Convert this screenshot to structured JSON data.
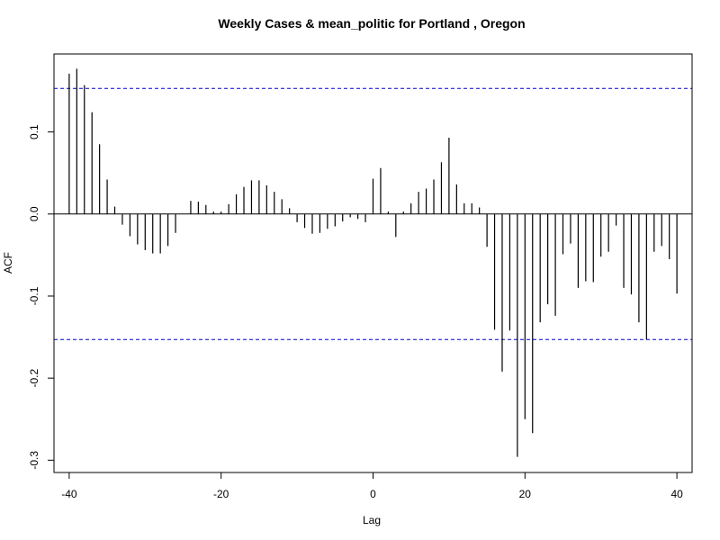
{
  "chart_data": {
    "type": "bar",
    "title": "Weekly Cases & mean_politic for Portland , Oregon",
    "xlabel": "Lag",
    "ylabel": "ACF",
    "xlim": [
      -42,
      42
    ],
    "ylim": [
      -0.315,
      0.195
    ],
    "x_ticks": [
      -40,
      -20,
      0,
      20,
      40
    ],
    "x_tick_labels": [
      "-40",
      "-20",
      "0",
      "20",
      "40"
    ],
    "y_ticks": [
      -0.3,
      -0.2,
      -0.1,
      0.0,
      0.1
    ],
    "y_tick_labels": [
      "-0.3",
      "-0.2",
      "-0.1",
      "0.0",
      "0.1"
    ],
    "confidence_bounds": [
      0.153,
      -0.153
    ],
    "bound_color": "#0000cc",
    "bar_color": "#000000",
    "grid": false,
    "lags": [
      -40,
      -39,
      -38,
      -37,
      -36,
      -35,
      -34,
      -33,
      -32,
      -31,
      -30,
      -29,
      -28,
      -27,
      -26,
      -25,
      -24,
      -23,
      -22,
      -21,
      -20,
      -19,
      -18,
      -17,
      -16,
      -15,
      -14,
      -13,
      -12,
      -11,
      -10,
      -9,
      -8,
      -7,
      -6,
      -5,
      -4,
      -3,
      -2,
      -1,
      0,
      1,
      2,
      3,
      4,
      5,
      6,
      7,
      8,
      9,
      10,
      11,
      12,
      13,
      14,
      15,
      16,
      17,
      18,
      19,
      20,
      21,
      22,
      23,
      24,
      25,
      26,
      27,
      28,
      29,
      30,
      31,
      32,
      33,
      34,
      35,
      36,
      37,
      38,
      39,
      40
    ],
    "values": [
      0.171,
      0.177,
      0.157,
      0.124,
      0.085,
      0.042,
      0.009,
      -0.013,
      -0.027,
      -0.037,
      -0.044,
      -0.048,
      -0.048,
      -0.039,
      -0.023,
      0.0,
      0.016,
      0.015,
      0.011,
      0.003,
      0.003,
      0.012,
      0.024,
      0.033,
      0.041,
      0.041,
      0.035,
      0.027,
      0.018,
      0.007,
      -0.01,
      -0.017,
      -0.024,
      -0.023,
      -0.018,
      -0.015,
      -0.009,
      -0.004,
      -0.006,
      -0.01,
      0.043,
      0.056,
      0.003,
      -0.028,
      0.003,
      0.013,
      0.027,
      0.031,
      0.042,
      0.063,
      0.093,
      0.036,
      0.013,
      0.013,
      0.008,
      -0.04,
      -0.141,
      -0.192,
      -0.142,
      -0.296,
      -0.25,
      -0.267,
      -0.132,
      -0.11,
      -0.124,
      -0.049,
      -0.036,
      -0.09,
      -0.082,
      -0.083,
      -0.052,
      -0.046,
      -0.014,
      -0.09,
      -0.098,
      -0.132,
      -0.153,
      -0.046,
      -0.039,
      -0.055,
      -0.097
    ]
  }
}
